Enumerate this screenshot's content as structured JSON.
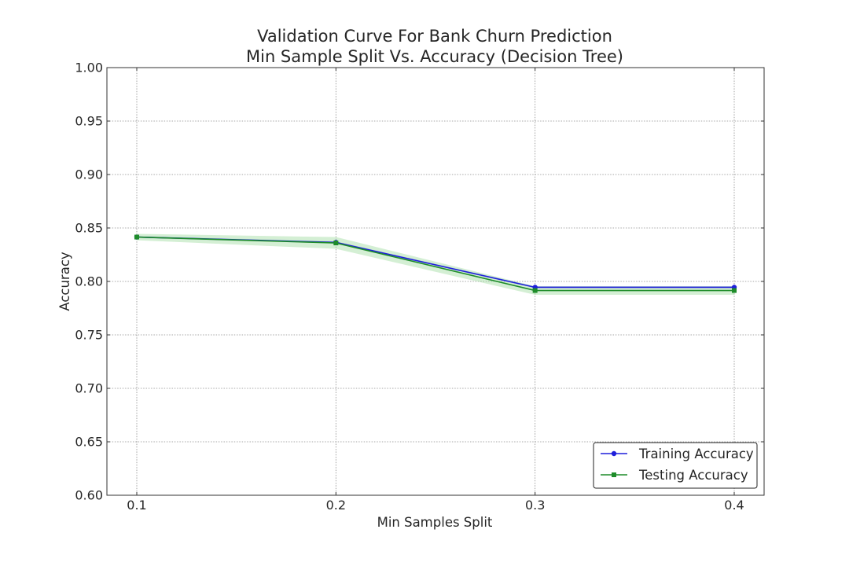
{
  "chart_data": {
    "type": "line",
    "title": "Validation Curve For Bank Churn Prediction",
    "subtitle": "Min Sample Split Vs. Accuracy (Decision Tree)",
    "xlabel": "Min Samples Split",
    "ylabel": "Accuracy",
    "x": [
      0.1,
      0.2,
      0.3,
      0.4
    ],
    "x_tick_labels": [
      "0.1",
      "0.2",
      "0.3",
      "0.4"
    ],
    "xlim": [
      0.085,
      0.415
    ],
    "ylim": [
      0.6,
      1.0
    ],
    "y_ticks": [
      0.6,
      0.65,
      0.7,
      0.75,
      0.8,
      0.85,
      0.9,
      0.95,
      1.0
    ],
    "y_tick_labels": [
      "0.60",
      "0.65",
      "0.70",
      "0.75",
      "0.80",
      "0.85",
      "0.90",
      "0.95",
      "1.00"
    ],
    "grid": true,
    "legend_position": "bottom-right",
    "series": [
      {
        "name": "Training Accuracy",
        "color": "#1f1fdb",
        "marker": "circle",
        "values": [
          0.8415,
          0.8365,
          0.7945,
          0.7945
        ],
        "band": [
          [
            0.8405,
            0.8425
          ],
          [
            0.8355,
            0.8375
          ],
          [
            0.7935,
            0.7955
          ],
          [
            0.7935,
            0.7955
          ]
        ]
      },
      {
        "name": "Testing Accuracy",
        "color": "#1e8c2a",
        "marker": "square",
        "values": [
          0.8415,
          0.836,
          0.7915,
          0.7915
        ],
        "band": [
          [
            0.8385,
            0.8445
          ],
          [
            0.8305,
            0.8415
          ],
          [
            0.7875,
            0.7955
          ],
          [
            0.7875,
            0.7955
          ]
        ],
        "band_color": "#9fdc9f"
      }
    ]
  }
}
